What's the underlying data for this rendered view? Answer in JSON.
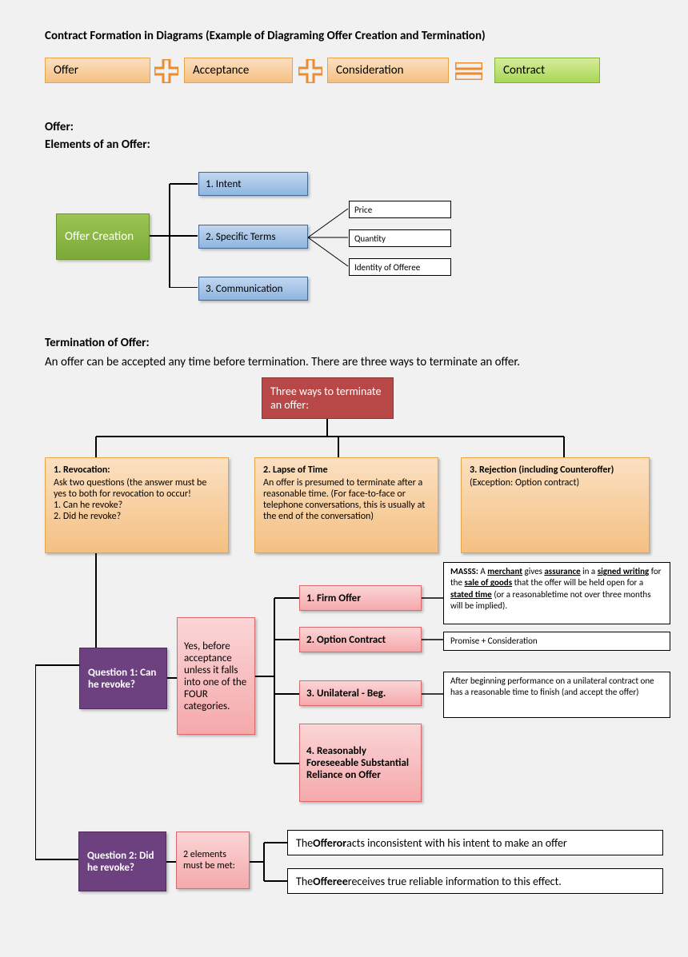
{
  "title": "Contract Formation  in Diagrams (Example of Diagraming Offer  Creation and Termination)",
  "equation": {
    "boxes": [
      {
        "label": "Offer",
        "bg": "linear-gradient(#fbe0c1,#f4c082)",
        "border": "#e8a547"
      },
      {
        "label": "Acceptance",
        "bg": "linear-gradient(#fbe0c1,#f4c082)",
        "border": "#e8a547"
      },
      {
        "label": "Consideration",
        "bg": "linear-gradient(#fbe0c1,#f4c082)",
        "border": "#e8a547"
      },
      {
        "label": "Contract",
        "bg": "linear-gradient(#d7ec9a,#a9d658)",
        "border": "#7fb23a"
      }
    ]
  },
  "section1": {
    "heading1": "Offer:",
    "heading2": "Elements of an Offer:",
    "root": "Offer Creation",
    "root_bg": "linear-gradient(#9cc552,#7ba93a)",
    "root_border": "#6a9430",
    "elements": [
      "1. Intent",
      "2. Specific Terms",
      "3. Communication"
    ],
    "elem_bg": "linear-gradient(#c2d7ef,#8fb5e0)",
    "elem_border": "#416a9b",
    "terms": [
      "Price",
      "Quantity",
      "Identity of Offeree"
    ],
    "term_bg": "#ffffff",
    "term_border": "#000000"
  },
  "section2": {
    "heading": "Termination of Offer:",
    "subtext": "An offer can be accepted any time before termination. There are three ways to terminate an offer.",
    "root": "Three ways to terminate an offer:",
    "root_bg": "#b84848",
    "root_border": "#8c3535",
    "branches": [
      {
        "title": "1. Revocation:",
        "body": "Ask two questions (the answer must be yes to both for revocation to occur!\n1. Can he revoke?\n2. Did he revoke?"
      },
      {
        "title": "2.  Lapse of Time",
        "body": "An offer is presumed to terminate after a reasonable time. (For face-to-face or telephone conversations, this is usually at the end of the conversation)"
      },
      {
        "title": "3.  Rejection (including Counteroffer)",
        "body": "(Exception: Option contract)"
      }
    ],
    "branch_bg": "linear-gradient(#fbe0c1,#f4c082)",
    "branch_border": "#e8a547"
  },
  "q1": {
    "label": "Question 1: Can he revoke?",
    "bg": "#6d407f",
    "border": "#4e2d5b",
    "answer": "Yes, before acceptance unless it falls into one of the FOUR categories.",
    "answer_bg": "linear-gradient(#fbd5d6,#f5a9ab)",
    "answer_border": "#d86a6d",
    "categories": [
      "1. Firm Offer",
      "2. Option Contract",
      "3. Unilateral - Beg.",
      "4. Reasonably Foreseeable Substantial Reliance on Offer"
    ],
    "cat_bg": "linear-gradient(#fbd5d6,#f5a9ab)",
    "cat_border": "#d86a6d",
    "notes": [
      {
        "html": "<b>MASSS:</b> A <b><u>merchant</u></b> gives <b><u>assurance</u></b> in a <b><u>signed writing</u></b> for the <b><u>sale of goods</u></b> that the offer will be held open for a <b><u>stated time</u></b> (or a reasonabletime not over three months will be implied)."
      },
      {
        "html": "Promise + Consideration"
      },
      {
        "html": "After beginning performance on a unilateral contract one has a reasonable time to finish (and accept the offer)"
      }
    ],
    "note_bg": "#ffffff",
    "note_border": "#000000"
  },
  "q2": {
    "label": "Question 2:  Did he revoke?",
    "bg": "#6d407f",
    "border": "#4e2d5b",
    "answer": "2 elements must be met:",
    "answer_bg": "linear-gradient(#fbd5d6,#f5a9ab)",
    "answer_border": "#d86a6d",
    "elements": [
      {
        "html": "The <b>Offeror</b> acts inconsistent with his intent to make an offer"
      },
      {
        "html": "The <b>Offeree</b> receives true reliable information to this effect."
      }
    ],
    "note_bg": "#ffffff",
    "note_border": "#000000"
  },
  "colors": {
    "text": "#000000",
    "plus": "#ec8c2e",
    "equals": "#ec8c2e",
    "line": "#000000"
  },
  "fonts": {
    "title": 15,
    "heading": 15,
    "body": 13,
    "small": 11
  }
}
